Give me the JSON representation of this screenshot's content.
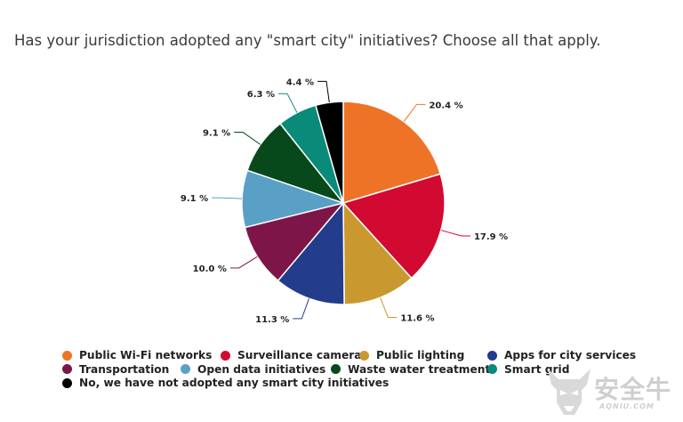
{
  "title": "Has your jurisdiction adopted any \"smart city\" initiatives?  Choose all that apply.",
  "chart_data": {
    "type": "pie",
    "title": "Has your jurisdiction adopted any \"smart city\" initiatives?  Choose all that apply.",
    "categories": [
      "Public Wi-Fi networks",
      "Surveillance cameras",
      "Public lighting",
      "Apps for city services",
      "Transportation",
      "Open data initiatives",
      "Waste water treatment",
      "Smart grid",
      "No, we have not adopted any smart city initiatives"
    ],
    "values": [
      20.4,
      17.9,
      11.6,
      11.3,
      10.0,
      9.1,
      9.1,
      6.3,
      4.4
    ],
    "value_labels": [
      "20.4 %",
      "17.9 %",
      "11.6 %",
      "11.3 %",
      "10.0 %",
      "9.1 %",
      "9.1 %",
      "6.3 %",
      "4.4 %"
    ],
    "colors": [
      "#ef7326",
      "#d20a31",
      "#c99930",
      "#233c8c",
      "#7e1548",
      "#5aa0c6",
      "#07491a",
      "#0a8a78",
      "#000000"
    ],
    "legend_placement": "bottom"
  },
  "legend": {
    "rows": [
      [
        {
          "label": "Public Wi-Fi networks",
          "color": "#ef7326"
        },
        {
          "label": "Surveillance cameras",
          "color": "#d20a31"
        },
        {
          "label": "Public lighting",
          "color": "#c99930"
        },
        {
          "label": "Apps for city services",
          "color": "#233c8c"
        }
      ],
      [
        {
          "label": "Transportation",
          "color": "#7e1548"
        },
        {
          "label": "Open data initiatives",
          "color": "#5aa0c6"
        },
        {
          "label": "Waste water treatment",
          "color": "#07491a"
        },
        {
          "label": "Smart grid",
          "color": "#0a8a78"
        }
      ],
      [
        {
          "label": "No, we have not adopted any smart city initiatives",
          "color": "#000000"
        }
      ]
    ]
  },
  "watermark": {
    "text_cn": "安全牛",
    "text_en": "AQNIU.COM"
  }
}
